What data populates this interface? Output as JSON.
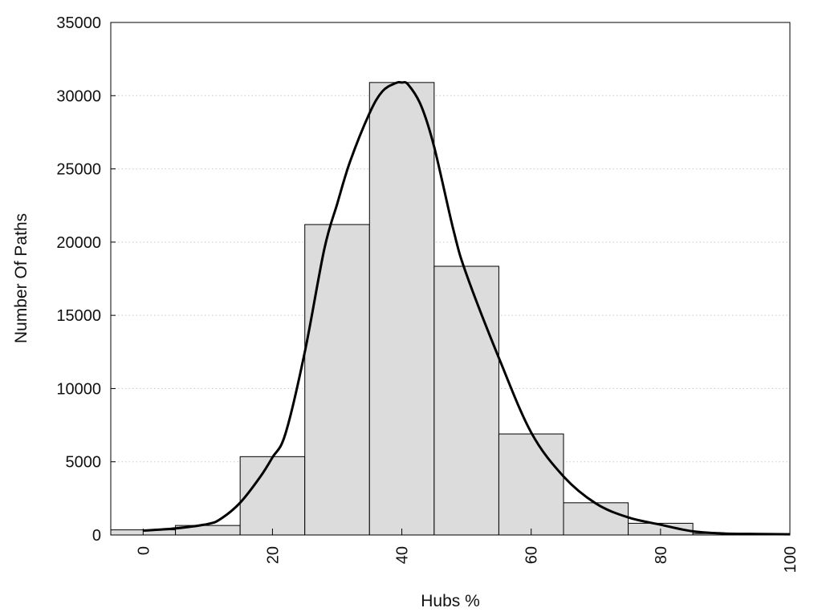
{
  "chart_data": {
    "type": "bar",
    "title": "",
    "xlabel": "Hubs %",
    "ylabel": "Number Of Paths",
    "xlim": [
      -5,
      100
    ],
    "ylim": [
      0,
      35000
    ],
    "xticks": [
      0,
      20,
      40,
      60,
      80,
      100
    ],
    "yticks": [
      0,
      5000,
      10000,
      15000,
      20000,
      25000,
      30000,
      35000
    ],
    "grid": "horizontal dotted",
    "legend": "none",
    "bin_width": 10,
    "bins": [
      {
        "center": 0,
        "value": 350
      },
      {
        "center": 10,
        "value": 650
      },
      {
        "center": 20,
        "value": 5350
      },
      {
        "center": 30,
        "value": 21200
      },
      {
        "center": 40,
        "value": 30900
      },
      {
        "center": 50,
        "value": 18350
      },
      {
        "center": 60,
        "value": 6900
      },
      {
        "center": 70,
        "value": 2200
      },
      {
        "center": 80,
        "value": 800
      },
      {
        "center": 90,
        "value": 100
      }
    ],
    "density_curve": {
      "x": [
        0,
        5,
        10,
        12,
        15,
        18,
        20,
        22,
        25,
        28,
        30,
        32,
        35,
        37,
        39,
        40,
        41,
        43,
        45,
        48,
        50,
        55,
        60,
        65,
        70,
        75,
        80,
        85,
        90,
        95,
        100
      ],
      "y": [
        300,
        450,
        750,
        1100,
        2200,
        3900,
        5300,
        6900,
        12500,
        19500,
        22600,
        25500,
        28800,
        30300,
        30850,
        30900,
        30750,
        29300,
        26500,
        20800,
        17800,
        12100,
        7000,
        4000,
        2150,
        1200,
        700,
        250,
        100,
        70,
        50
      ]
    },
    "colors": {
      "bar_fill": "#dcdcdc",
      "bar_stroke": "#000000",
      "curve": "#000000",
      "grid": "#c8c8c8"
    }
  }
}
